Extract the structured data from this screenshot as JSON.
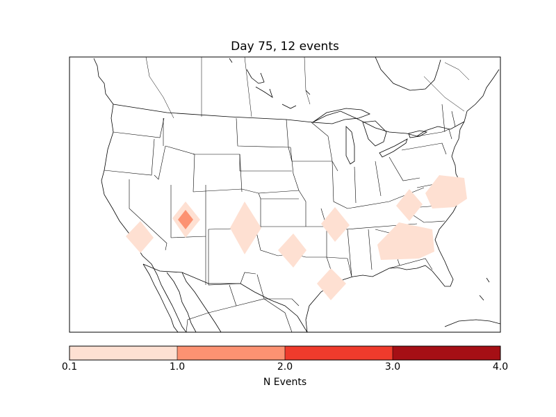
{
  "title": "Day 75, 12 events",
  "colorbar": {
    "label": "N Events",
    "ticks": [
      "0.1",
      "1.0",
      "2.0",
      "3.0",
      "4.0"
    ],
    "bins": [
      {
        "from": 0.1,
        "to": 1.0,
        "color": "#fee0d2"
      },
      {
        "from": 1.0,
        "to": 2.0,
        "color": "#fc9272"
      },
      {
        "from": 2.0,
        "to": 3.0,
        "color": "#ef3b2c"
      },
      {
        "from": 3.0,
        "to": 4.0,
        "color": "#a50f15"
      }
    ]
  },
  "colors": {
    "frame": "#000000",
    "land_outline": "#000000",
    "low": "#fee0d2",
    "mid": "#fc9272"
  },
  "events": [
    {
      "region": "central-california",
      "n": 0.5
    },
    {
      "region": "utah",
      "n": 0.5
    },
    {
      "region": "utah-core",
      "n": 1.5
    },
    {
      "region": "eastern-colorado",
      "n": 0.5
    },
    {
      "region": "oklahoma",
      "n": 0.5
    },
    {
      "region": "missouri",
      "n": 0.5
    },
    {
      "region": "south-texas",
      "n": 0.5
    },
    {
      "region": "georgia-carolinas",
      "n": 0.5
    },
    {
      "region": "western-north-carolina",
      "n": 0.5
    },
    {
      "region": "virginia",
      "n": 0.5
    }
  ]
}
